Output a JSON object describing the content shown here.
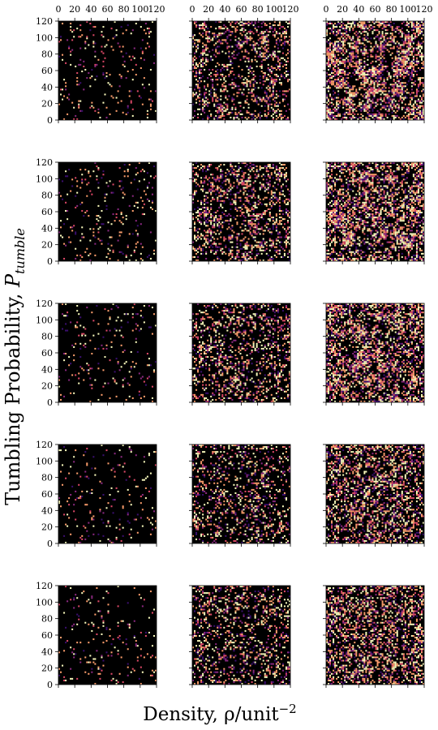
{
  "chart_data": {
    "type": "heatmap",
    "grid_rows": 5,
    "grid_cols": 3,
    "xlabel": "Density, ρ/unit",
    "xlabel_exponent": "−2",
    "ylabel": "Tumbling Probability, ",
    "ylabel_symbol": "P",
    "ylabel_subscript": "tumble",
    "xlim": [
      0,
      120
    ],
    "ylim": [
      0,
      120
    ],
    "x_ticks": [
      0,
      20,
      40,
      60,
      80,
      100,
      120
    ],
    "y_ticks": [
      0,
      20,
      40,
      60,
      80,
      100,
      120
    ],
    "x_tick_labels": [
      "0",
      "20",
      "40",
      "60",
      "80",
      "100",
      "120"
    ],
    "y_tick_labels": [
      "0",
      "20",
      "40",
      "60",
      "80",
      "100",
      "120"
    ],
    "colormap": [
      "#000004",
      "#3b0f70",
      "#8c2981",
      "#de4968",
      "#fe9f6d",
      "#fcfdbf"
    ],
    "background_color": "#000000",
    "panels": [
      {
        "row": 0,
        "col": 0,
        "occupancy": 0.07,
        "clustering": 0.55
      },
      {
        "row": 0,
        "col": 1,
        "occupancy": 0.38,
        "clustering": 0.85
      },
      {
        "row": 0,
        "col": 2,
        "occupancy": 0.58,
        "clustering": 0.85
      },
      {
        "row": 1,
        "col": 0,
        "occupancy": 0.07,
        "clustering": 0.45
      },
      {
        "row": 1,
        "col": 1,
        "occupancy": 0.35,
        "clustering": 0.75
      },
      {
        "row": 1,
        "col": 2,
        "occupancy": 0.52,
        "clustering": 0.78
      },
      {
        "row": 2,
        "col": 0,
        "occupancy": 0.06,
        "clustering": 0.3
      },
      {
        "row": 2,
        "col": 1,
        "occupancy": 0.3,
        "clustering": 0.65
      },
      {
        "row": 2,
        "col": 2,
        "occupancy": 0.48,
        "clustering": 0.68
      },
      {
        "row": 3,
        "col": 0,
        "occupancy": 0.06,
        "clustering": 0.2
      },
      {
        "row": 3,
        "col": 1,
        "occupancy": 0.27,
        "clustering": 0.5
      },
      {
        "row": 3,
        "col": 2,
        "occupancy": 0.45,
        "clustering": 0.55
      },
      {
        "row": 4,
        "col": 0,
        "occupancy": 0.06,
        "clustering": 0.1
      },
      {
        "row": 4,
        "col": 1,
        "occupancy": 0.25,
        "clustering": 0.3
      },
      {
        "row": 4,
        "col": 2,
        "occupancy": 0.42,
        "clustering": 0.35
      }
    ]
  }
}
